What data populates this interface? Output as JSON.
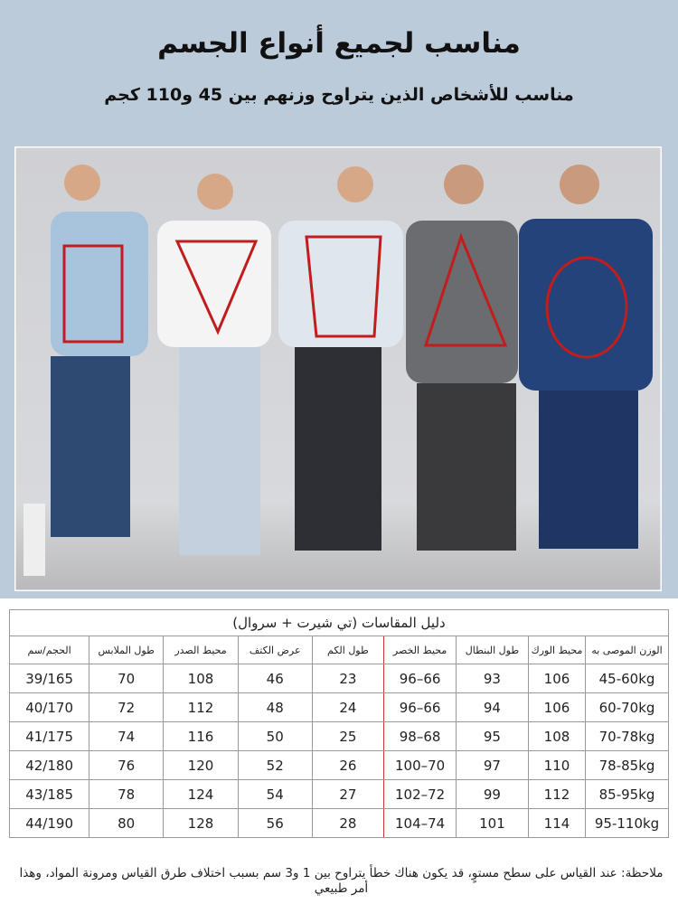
{
  "header": {
    "title": "مناسب لجميع أنواع الجسم",
    "subtitle": "مناسب للأشخاص الذين يتراوح وزنهم بين 45 و110 كجم"
  },
  "table": {
    "caption": "دليل المقاسات (تي شيرت + سروال)",
    "columns": [
      "الوزن الموصى به",
      "محيط الورك",
      "طول البنطال",
      "محيط الخصر",
      "طول الكم",
      "عرض الكتف",
      "محيط الصدر",
      "طول الملابس",
      "الحجم/سم"
    ],
    "rows": [
      [
        "45-60kg",
        "106",
        "93",
        "66–96",
        "23",
        "46",
        "108",
        "70",
        "39/165"
      ],
      [
        "60-70kg",
        "106",
        "94",
        "66–96",
        "24",
        "48",
        "112",
        "72",
        "40/170"
      ],
      [
        "70-78kg",
        "108",
        "95",
        "68–98",
        "25",
        "50",
        "116",
        "74",
        "41/175"
      ],
      [
        "78-85kg",
        "110",
        "97",
        "70–100",
        "26",
        "52",
        "120",
        "76",
        "42/180"
      ],
      [
        "85-95kg",
        "112",
        "99",
        "72–102",
        "27",
        "54",
        "124",
        "78",
        "43/185"
      ],
      [
        "95-110kg",
        "114",
        "101",
        "74–104",
        "28",
        "56",
        "128",
        "80",
        "44/190"
      ]
    ]
  },
  "note": "ملاحظة: عند القياس على سطح مستوٍ، قد يكون هناك خطأ يتراوح بين 1 و3 سم بسبب اختلاف طرق القياس ومرونة المواد، وهذا أمر طبيعي"
}
